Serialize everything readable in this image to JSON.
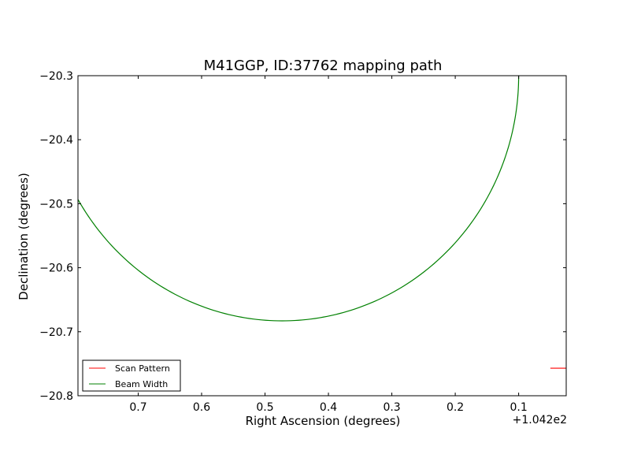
{
  "chart_data": {
    "type": "line",
    "title": "M41GGP, ID:37762 mapping path",
    "xlabel": "Right Ascension (degrees)",
    "ylabel": "Declination (degrees)",
    "x_offset_label": "+1.042e2",
    "x_axis_inverted": true,
    "xlim": [
      0.795,
      0.025
    ],
    "ylim": [
      -20.8,
      -20.3
    ],
    "x_ticks": [
      0.7,
      0.6,
      0.5,
      0.4,
      0.3,
      0.2,
      0.1
    ],
    "x_tick_labels": [
      "0.7",
      "0.6",
      "0.5",
      "0.4",
      "0.3",
      "0.2",
      "0.1"
    ],
    "y_ticks": [
      -20.3,
      -20.4,
      -20.5,
      -20.6,
      -20.7,
      -20.8
    ],
    "y_tick_labels": [
      "−20.3",
      "−20.4",
      "−20.5",
      "−20.6",
      "−20.7",
      "−20.8"
    ],
    "grid": false,
    "legend_position": "lower-left",
    "series": [
      {
        "name": "Scan Pattern",
        "color": "#ff0000",
        "x": [
          0.05,
          0.025
        ],
        "y": [
          -20.757,
          -20.757
        ]
      },
      {
        "name": "Beam Width",
        "color": "#008000",
        "circle": {
          "center_x": 0.473,
          "center_y": -20.3,
          "radius_x": 0.373,
          "radius_y": 0.383
        }
      }
    ]
  }
}
